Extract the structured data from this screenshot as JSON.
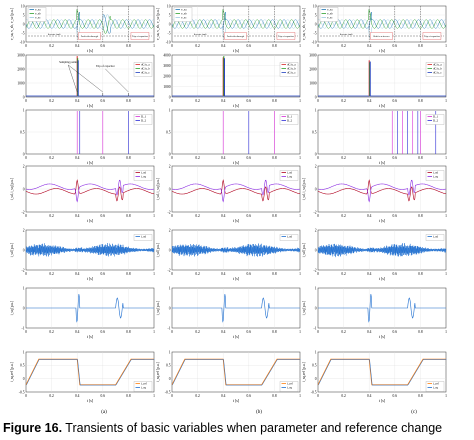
{
  "figure": {
    "caption_label": "Figure 16.",
    "caption_text": "Transients of basic variables when parameter and reference change",
    "column_labels": [
      "(a)",
      "(b)",
      "(c)"
    ]
  },
  "rows": [
    {
      "id": "voltages",
      "ylabel": "v_sa, v_sb, v_sc [p.u.]",
      "xlabel": "t [s]",
      "yticks": [
        "10",
        "5",
        "0",
        "-5",
        "-10"
      ],
      "legend": [
        "v_sa",
        "v_sb",
        "v_sc"
      ],
      "colors": [
        "#1f77b4",
        "#2ca02c",
        "#9ecae1"
      ]
    },
    {
      "id": "derivatives",
      "ylabel": "",
      "xlabel": "t [s]",
      "yticks_a": [
        "3000",
        "2000",
        "1000",
        "0"
      ],
      "yticks_b": [
        "4000",
        "3000",
        "2000",
        "1000",
        "0"
      ],
      "yticks_c": [
        "3000",
        "2000",
        "1000",
        "0"
      ],
      "legend": [
        "dC/u_a",
        "dC/u_b",
        "dC/u_c"
      ],
      "colors": [
        "#d62728",
        "#2ca02c",
        "#1f3fbf"
      ],
      "annotations": [
        "Sampling points",
        "Trip of capacitor"
      ]
    },
    {
      "id": "detections",
      "ylabel": "",
      "xlabel": "t [s]",
      "yticks": [
        "1",
        "0.5",
        "0"
      ],
      "legend": [
        "D_1",
        "D_2"
      ],
      "colors": [
        "#d62fd6",
        "#2c2cd6"
      ]
    },
    {
      "id": "currents",
      "ylabel": "i_sd, i_sq [p.u.]",
      "xlabel": "t [s]",
      "yticks": [
        "2",
        "0",
        "-2"
      ],
      "legend": [
        "i_sd",
        "i_sq"
      ],
      "colors": [
        "#b0001e",
        "#8a2be2"
      ]
    },
    {
      "id": "ripple",
      "ylabel": "i_sd [p.u.]",
      "xlabel": "t [s]",
      "yticks": [
        "2",
        "0",
        "-2"
      ],
      "legend": [
        "i_sd"
      ],
      "colors": [
        "#1f6fd0"
      ]
    },
    {
      "id": "iq",
      "ylabel": "i_sq [p.u.]",
      "xlabel": "t [s]",
      "yticks": [
        "1",
        "0",
        "-1"
      ],
      "legend": [],
      "colors": [
        "#1f6fd0"
      ]
    },
    {
      "id": "reference",
      "ylabel": "i_sq,ref [p.u.]",
      "xlabel": "t [s]",
      "yticks": [
        "1",
        "0.5",
        "0",
        "-0.5"
      ],
      "legend": [
        "i_ref",
        "i_sq"
      ],
      "colors": [
        "#ff7f0e",
        "#1f6fd0"
      ]
    }
  ],
  "xticks": [
    "0",
    "0.2",
    "0.4",
    "0.6",
    "0.8",
    "1"
  ],
  "region_labels": {
    "a": [
      "Inverter fault",
      "Fault ride-through",
      "Trip of capacitor"
    ],
    "b": [
      "Inverter fault",
      "Fault ride-through",
      "Trip of capacitor"
    ],
    "c": [
      "Inverter fault",
      "Shift in reference",
      "Trip of capacitor"
    ]
  }
}
